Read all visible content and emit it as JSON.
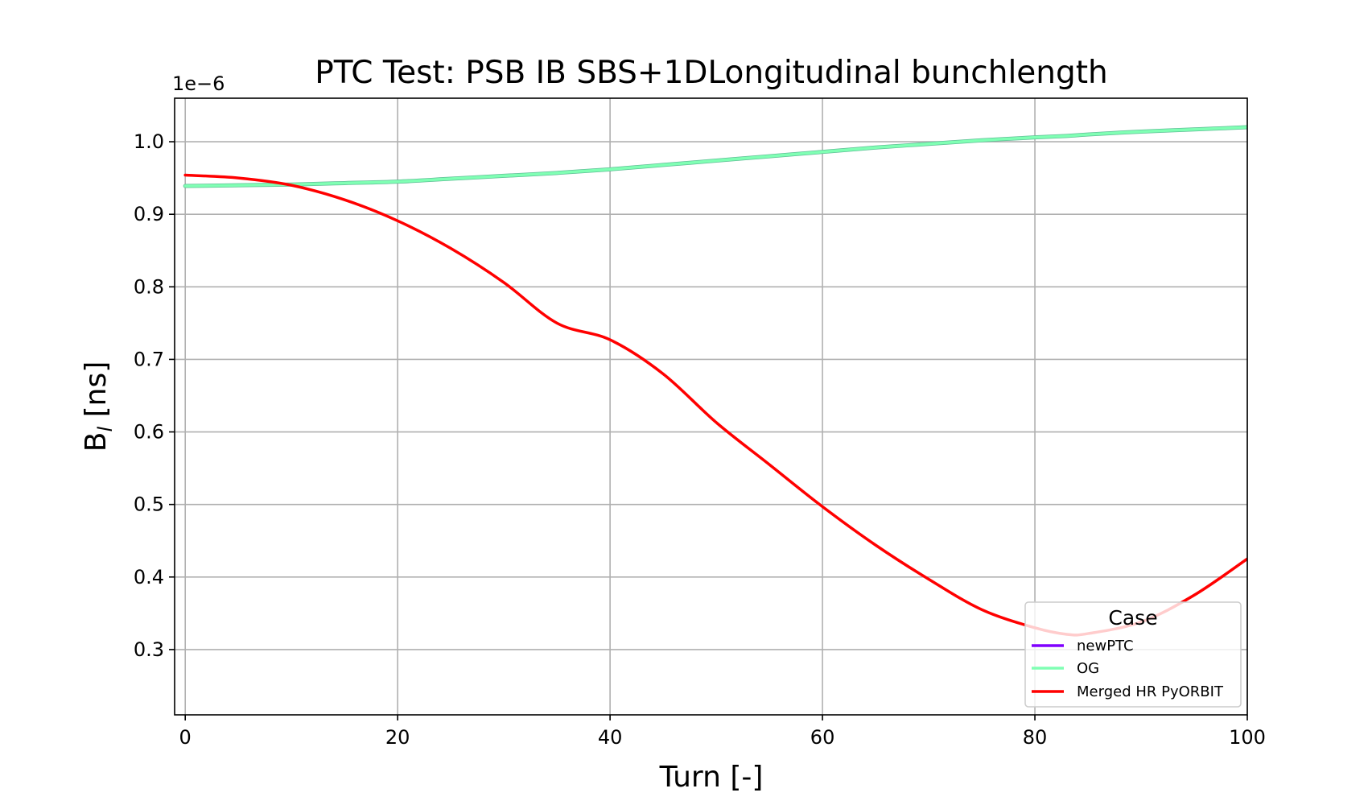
{
  "chart_data": {
    "type": "line",
    "title": "PTC Test: PSB IB SBS+1DLongitudinal bunchlength",
    "xlabel": "Turn [-]",
    "ylabel_main": "B",
    "ylabel_sub": "l",
    "ylabel_unit": " [ns]",
    "y_offset_label": "1e−6",
    "xlim": [
      -1,
      100
    ],
    "ylim": [
      0.21,
      1.06
    ],
    "xticks": [
      0,
      20,
      40,
      60,
      80,
      100
    ],
    "xtick_labels": [
      "0",
      "20",
      "40",
      "60",
      "80",
      "100"
    ],
    "yticks": [
      0.3,
      0.4,
      0.5,
      0.6,
      0.7,
      0.8,
      0.9,
      1.0
    ],
    "ytick_labels": [
      "0.3",
      "0.4",
      "0.5",
      "0.6",
      "0.7",
      "0.8",
      "0.9",
      "1.0"
    ],
    "grid": true,
    "legend": {
      "title": "Case",
      "placement": "lower-right"
    },
    "x": [
      0,
      5,
      10,
      15,
      20,
      25,
      30,
      35,
      40,
      45,
      50,
      55,
      60,
      65,
      70,
      75,
      80,
      83,
      85,
      90,
      95,
      100
    ],
    "series": [
      {
        "name": "newPTC",
        "color": "#8000ff",
        "values": [
          0.939,
          0.94,
          0.941,
          0.943,
          0.945,
          0.949,
          0.953,
          0.957,
          0.962,
          0.968,
          0.974,
          0.98,
          0.986,
          0.992,
          0.997,
          1.002,
          1.006,
          1.008,
          1.01,
          1.014,
          1.017,
          1.02
        ]
      },
      {
        "name": "OG",
        "color": "#80ffb4",
        "values": [
          0.939,
          0.94,
          0.941,
          0.943,
          0.945,
          0.949,
          0.953,
          0.957,
          0.962,
          0.968,
          0.974,
          0.98,
          0.986,
          0.992,
          0.997,
          1.002,
          1.006,
          1.008,
          1.01,
          1.014,
          1.017,
          1.02
        ]
      },
      {
        "name": "Merged HR PyORBIT",
        "color": "#ff0000",
        "values": [
          0.954,
          0.95,
          0.94,
          0.92,
          0.891,
          0.853,
          0.806,
          0.75,
          0.727,
          0.68,
          0.613,
          0.555,
          0.497,
          0.444,
          0.397,
          0.355,
          0.33,
          0.321,
          0.322,
          0.338,
          0.375,
          0.425
        ]
      }
    ]
  }
}
